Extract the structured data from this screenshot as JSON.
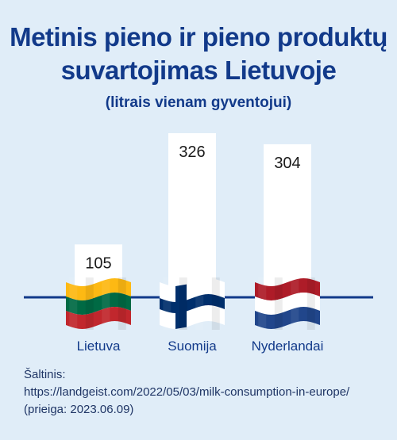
{
  "header": {
    "title_line1": "Metinis pieno ir pieno produktų",
    "title_line2": "suvartojimas Lietuvoje",
    "subtitle": "(litrais vienam gyventojui)"
  },
  "chart_data": {
    "type": "bar",
    "categories": [
      "Lietuva",
      "Suomija",
      "Nyderlandai"
    ],
    "values": [
      105,
      326,
      304
    ],
    "value_labels": [
      "105",
      "326",
      "304"
    ],
    "ylim": [
      0,
      326
    ],
    "grid": false,
    "bar_color": "#ffffff",
    "baseline_color": "#123a8a",
    "flags": [
      "lithuania-flag-icon",
      "finland-flag-icon",
      "netherlands-flag-icon"
    ]
  },
  "source": {
    "label": "Šaltinis:",
    "url": "https://landgeist.com/2022/05/03/milk-consumption-in-europe/",
    "accessed": "(prieiga: 2023.06.09)"
  },
  "colors": {
    "background": "#e0edf8",
    "title": "#123a8a",
    "lithuania": [
      "#fdb913",
      "#006a44",
      "#c1272d"
    ],
    "finland": [
      "#ffffff",
      "#002f6c"
    ],
    "netherlands": [
      "#ae1c28",
      "#ffffff",
      "#21468b"
    ]
  }
}
